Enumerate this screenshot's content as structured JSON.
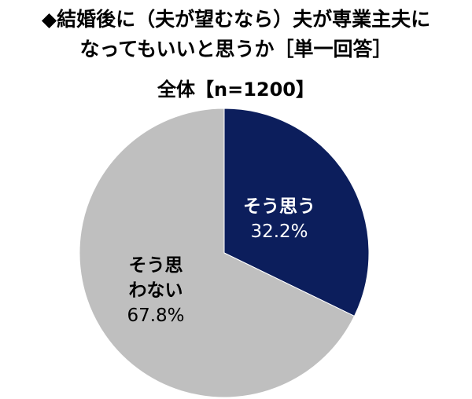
{
  "title_lines": [
    "◆結婚後に（夫が望むなら）夫が専業主夫に",
    "なってもいいと思うか［単一回答］"
  ],
  "subtitle": "全体【n=1200】",
  "colors": {
    "so_omou": "#0c1e5c",
    "so_omowanai": "#bfbfbf",
    "label_on_dark": "#ffffff",
    "label_on_light": "#000000"
  },
  "chart_data": {
    "type": "pie",
    "title": "◆結婚後に（夫が望むなら）夫が専業主夫になってもいいと思うか［単一回答］",
    "subtitle": "全体【n=1200】",
    "slices": [
      {
        "label_lines": [
          "そう思う"
        ],
        "value": 32.2,
        "value_label": "32.2%"
      },
      {
        "label_lines": [
          "そう思",
          "わない"
        ],
        "value": 67.8,
        "value_label": "67.8%"
      }
    ],
    "start_angle_deg": 0,
    "direction": "clockwise",
    "legend": "none"
  }
}
